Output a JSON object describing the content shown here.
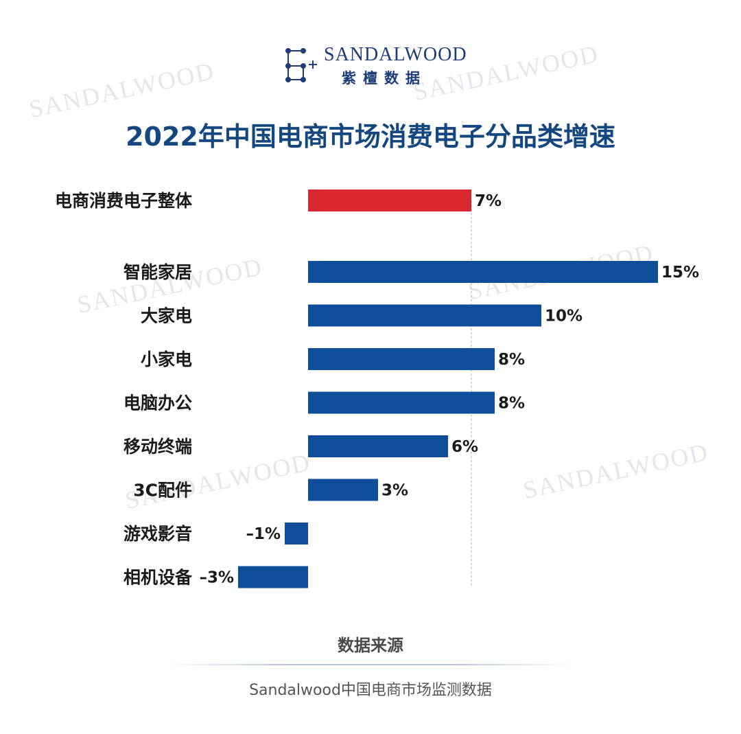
{
  "watermark": "SANDALWOOD",
  "logo": {
    "name_en": "SANDALWOOD",
    "name_cn": "紫檀数据"
  },
  "title": "2022年中国电商市场消费电子分品类增速",
  "source": {
    "heading": "数据来源",
    "text": "Sandalwood中国电商市场监测数据"
  },
  "colors": {
    "highlight": "#d9282f",
    "bar": "#0d4d9a",
    "title": "#14477f"
  },
  "chart_data": {
    "type": "bar",
    "orientation": "horizontal",
    "title": "2022年中国电商市场消费电子分品类增速",
    "categories": [
      "电商消费电子整体",
      "智能家居",
      "大家电",
      "小家电",
      "电脑办公",
      "移动终端",
      "3C配件",
      "游戏影音",
      "相机设备"
    ],
    "values": [
      7,
      15,
      10,
      8,
      8,
      6,
      3,
      -1,
      -3
    ],
    "value_labels": [
      "7%",
      "15%",
      "10%",
      "8%",
      "8%",
      "6%",
      "3%",
      "–1%",
      "–3%"
    ],
    "highlight_index": 0,
    "reference_line": 7,
    "unit": "%",
    "xlim": [
      -3,
      15
    ],
    "grid": false,
    "legend": "none"
  }
}
